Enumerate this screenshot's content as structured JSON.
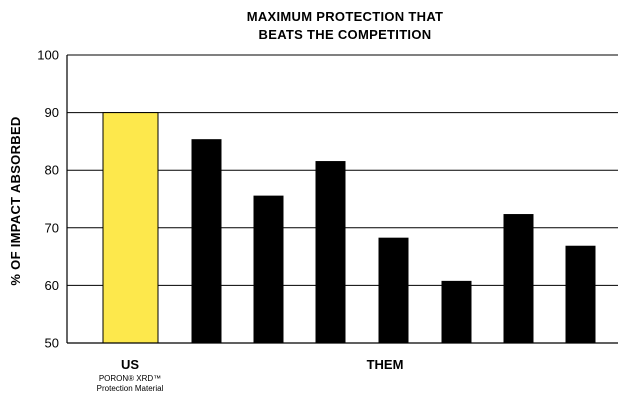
{
  "chart_data": {
    "type": "bar",
    "title": [
      "MAXIMUM PROTECTION THAT",
      "BEATS THE COMPETITION"
    ],
    "ylabel": "% OF IMPACT ABSORBED",
    "ylim": [
      50,
      100
    ],
    "yticks": [
      50,
      60,
      70,
      80,
      90,
      100
    ],
    "grid": true,
    "values": [
      90,
      85.3,
      75.5,
      81.5,
      68.2,
      60.7,
      72.3,
      66.8
    ],
    "bar_colors": [
      "#fde84c",
      "#000000",
      "#000000",
      "#000000",
      "#000000",
      "#000000",
      "#000000",
      "#000000"
    ],
    "bar_edge_color": "#000000",
    "group_labels": [
      {
        "label": "US",
        "sublabel": [
          "PORON® XRD™",
          "Protection Material"
        ]
      },
      {
        "label": "THEM"
      }
    ]
  }
}
